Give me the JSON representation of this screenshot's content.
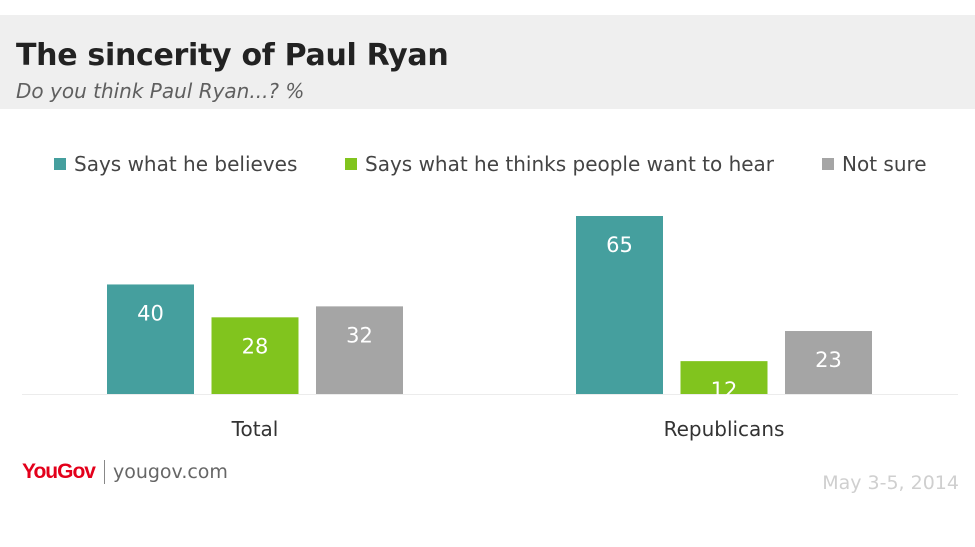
{
  "header": {
    "title": "The sincerity of Paul Ryan",
    "subtitle": "Do you think Paul Ryan...? %"
  },
  "chart_data": {
    "type": "bar",
    "title": "The sincerity of Paul Ryan",
    "subtitle": "Do you think Paul Ryan...? %",
    "categories": [
      "Total",
      "Republicans"
    ],
    "series": [
      {
        "name": "Says what he believes",
        "color": "#459f9e",
        "values": [
          40,
          65
        ]
      },
      {
        "name": "Says what he thinks people want to hear",
        "color": "#81c41e",
        "values": [
          28,
          12
        ]
      },
      {
        "name": "Not sure",
        "color": "#a5a5a5",
        "values": [
          32,
          23
        ]
      }
    ],
    "ylim": [
      0,
      65
    ],
    "grid": false,
    "legend_position": "top",
    "data_labels": true
  },
  "footer": {
    "brand": "YouGov",
    "url": "yougov.com",
    "date": "May 3-5, 2014"
  }
}
